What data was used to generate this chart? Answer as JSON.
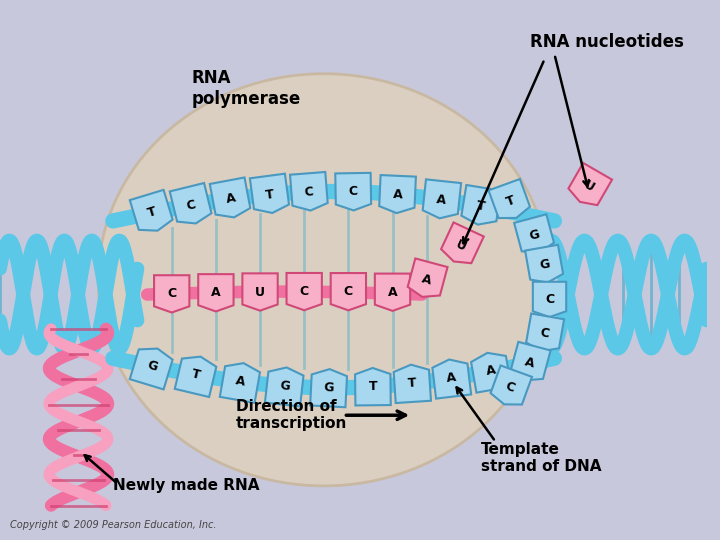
{
  "bg_color": "#c8c8dc",
  "bubble_color": "#ddd0c0",
  "bubble_edge": "#c8b8a0",
  "dna_blue": "#5bc8e8",
  "dna_blue_dark": "#3aa8c8",
  "dna_blue_light": "#90d8f0",
  "rna_pink": "#f070a0",
  "rna_pink_light": "#f8a0c0",
  "rna_pink_dark": "#d04070",
  "nuc_blue_fill": "#a8d8f0",
  "nuc_blue_edge": "#4898c0",
  "nuc_pink_fill": "#f8b0c8",
  "nuc_pink_edge": "#d04878",
  "arrow_color": "#111111",
  "text_color": "#111111",
  "labels": {
    "rna_nucleotides": "RNA nucleotides",
    "rna_polymerase": "RNA\npolymerase",
    "direction": "Direction of\ntranscription",
    "newly_made_rna": "Newly made RNA",
    "template_strand": "Template\nstrand of DNA"
  },
  "copyright": "Copyright © 2009 Pearson Education, Inc.",
  "top_bases": [
    "T",
    "C",
    "A",
    "T",
    "C",
    "C",
    "A",
    "A",
    "T"
  ],
  "bottom_bases": [
    "G",
    "T",
    "A",
    "G",
    "G",
    "T",
    "T",
    "A",
    "A",
    "C",
    "C"
  ],
  "rna_bases": [
    "C",
    "A",
    "U",
    "C",
    "C",
    "A"
  ],
  "incoming_rna_bases": [
    "A",
    "U"
  ],
  "right_bases": [
    "T",
    "G",
    "G",
    "C",
    "C"
  ],
  "right_rna_bases": [
    "U"
  ]
}
